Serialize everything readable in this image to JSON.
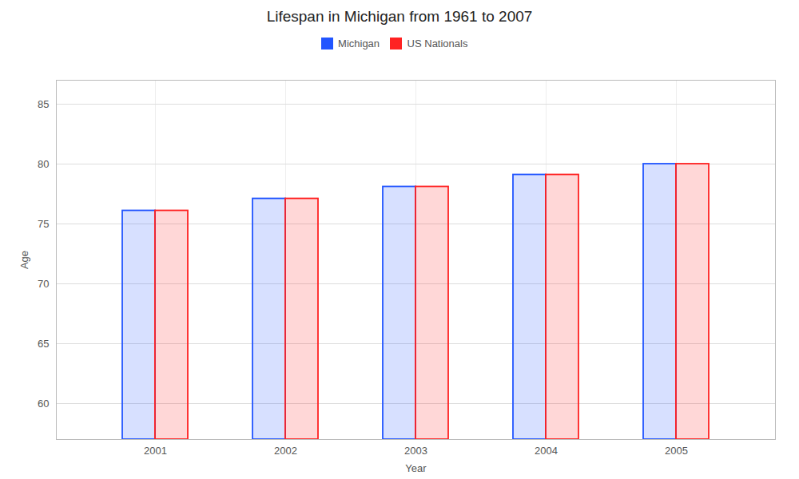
{
  "chart_data": {
    "type": "bar",
    "title": "Lifespan in Michigan from 1961 to 2007",
    "xlabel": "Year",
    "ylabel": "Age",
    "categories": [
      "2001",
      "2002",
      "2003",
      "2004",
      "2005"
    ],
    "series": [
      {
        "name": "Michigan",
        "color": "#2255ff",
        "values": [
          76.1,
          77.1,
          78.1,
          79.1,
          80.0
        ]
      },
      {
        "name": "US Nationals",
        "color": "#ff2222",
        "values": [
          76.1,
          77.1,
          78.1,
          79.1,
          80.0
        ]
      }
    ],
    "ylim": [
      57,
      87
    ],
    "yticks": [
      60,
      65,
      70,
      75,
      80,
      85
    ],
    "grid": true,
    "legend": "top"
  }
}
